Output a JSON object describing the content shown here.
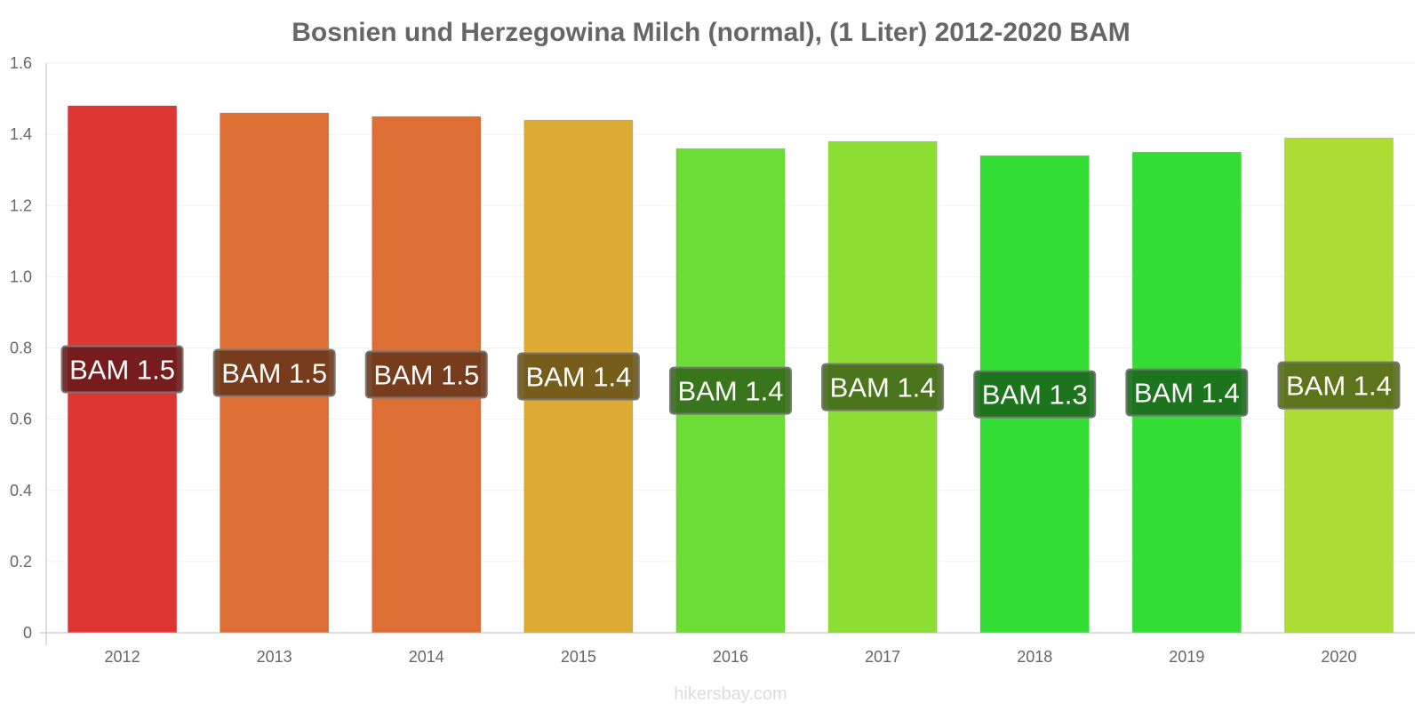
{
  "title": "Bosnien und Herzegowina Milch (normal), (1 Liter) 2012-2020 BAM",
  "source": "hikersbay.com",
  "chart_data": {
    "type": "bar",
    "title": "Bosnien und Herzegowina Milch (normal), (1 Liter) 2012-2020 BAM",
    "categories": [
      "2012",
      "2013",
      "2014",
      "2015",
      "2016",
      "2017",
      "2018",
      "2019",
      "2020"
    ],
    "values": [
      1.48,
      1.46,
      1.45,
      1.44,
      1.36,
      1.38,
      1.34,
      1.35,
      1.39
    ],
    "data_labels": [
      "BAM 1.5",
      "BAM 1.5",
      "BAM 1.5",
      "BAM 1.4",
      "BAM 1.4",
      "BAM 1.4",
      "BAM 1.3",
      "BAM 1.4",
      "BAM 1.4"
    ],
    "bar_colors": [
      "#dd3434",
      "#de6f34",
      "#de6f34",
      "#ddaa34",
      "#6cdd34",
      "#8cdd34",
      "#34dd34",
      "#34dd34",
      "#acdd34"
    ],
    "label_box_colors": [
      "#6b1a1a",
      "#6b361a",
      "#6b361a",
      "#6b541a",
      "#34691a",
      "#44691a",
      "#1a691a",
      "#1a691a",
      "#53691a"
    ],
    "yticks": [
      "0",
      "0.2",
      "0.4",
      "0.6",
      "0.8",
      "1.0",
      "1.2",
      "1.4",
      "1.6"
    ],
    "ylim": [
      0,
      1.6
    ],
    "xlabel": "",
    "ylabel": "",
    "grid": true,
    "legend": "none"
  }
}
